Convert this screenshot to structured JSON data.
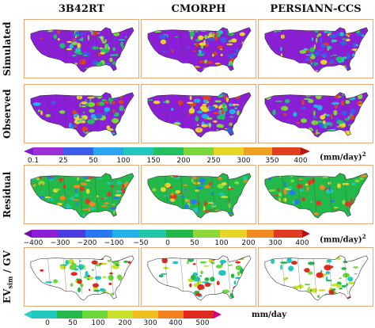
{
  "columns": [
    "3B42RT",
    "CMORPH",
    "PERSIANN-CCS"
  ],
  "rows": {
    "simulated": "Simulated",
    "observed": "Observed",
    "residual": "Residual",
    "ev_prefix": "EV",
    "ev_sub": "sim",
    "ev_suffix": " / GV"
  },
  "colorbar_1": {
    "ticks": [
      "0.1",
      "25",
      "50",
      "100",
      "150",
      "200",
      "250",
      "300",
      "350",
      "400"
    ],
    "unit": "(mm/day)",
    "unit_sup": "2"
  },
  "colorbar_2": {
    "ticks": [
      "−400",
      "−300",
      "−200",
      "−100",
      "−50",
      "0",
      "50",
      "100",
      "200",
      "300",
      "400"
    ],
    "unit": "(mm/day)",
    "unit_sup": "2"
  },
  "colorbar_3": {
    "ticks": [
      "0",
      "50",
      "100",
      "200",
      "300",
      "400",
      "500"
    ],
    "unit": "mm/day"
  },
  "colors": {
    "purple": "#8a1fd6",
    "green": "#1e9e3a",
    "light_green": "#5ed85e",
    "red": "#e02020",
    "panel_border": "#e8a878"
  }
}
